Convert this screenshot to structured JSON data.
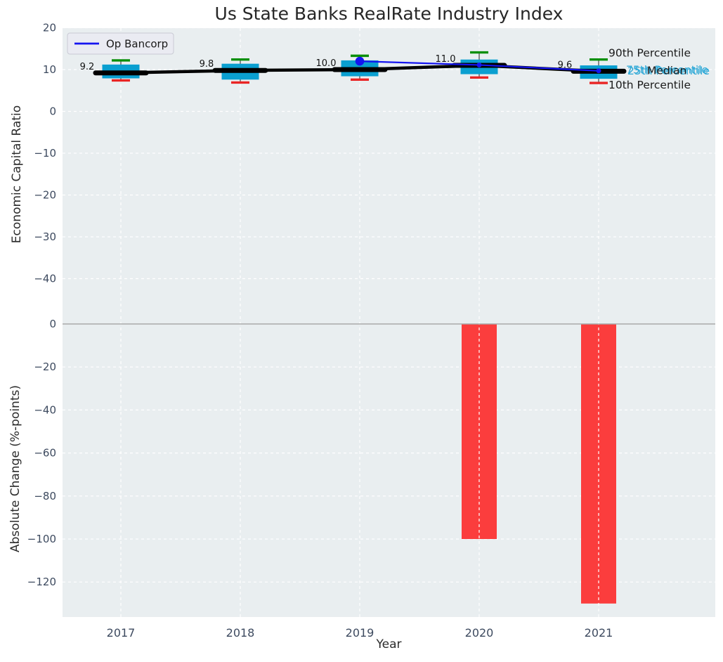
{
  "title": "Us State Banks RealRate Industry Index",
  "legend": {
    "label": "Op Bancorp"
  },
  "percentile_labels": {
    "p90": "90th Percentile",
    "p75": "75th Percentile",
    "median": "Median",
    "p25": "25th Percentile",
    "p10": "10th Percentile"
  },
  "colors": {
    "panel_bg": "#e9eef0",
    "grid": "#ffffff",
    "box_fill": "#0a9fd0",
    "cap_90": "#0a8f0a",
    "cap_10": "#e92424",
    "whisker": "#5b5b5b",
    "median_line": "#000000",
    "series_line": "#1515f0",
    "bar_color": "#fb3d3d",
    "zero_line": "#a9a9a9",
    "tick": "#3d4a5f",
    "text": "#1a1a1a",
    "cyan_label": "#2aa7d6",
    "legend_bg": "#eaebf2",
    "legend_border": "#c9cad4",
    "annotation": "#111111"
  },
  "chart_data": [
    {
      "type": "box",
      "title": "Us State Banks RealRate Industry Index",
      "ylabel": "Economic Capital Ratio",
      "categories": [
        "2017",
        "2018",
        "2019",
        "2020",
        "2021"
      ],
      "yticks": [
        "20",
        "10",
        "0",
        "−10",
        "−20",
        "−30",
        "−40"
      ],
      "ytick_values": [
        20,
        10,
        0,
        -10,
        -20,
        -30,
        -40
      ],
      "ylim": [
        -49,
        20
      ],
      "grid": true,
      "legend_position": "upper left",
      "boxes": [
        {
          "year": "2017",
          "p10": 7.4,
          "q1": 7.9,
          "median": 9.2,
          "q3": 11.2,
          "p90": 12.2
        },
        {
          "year": "2018",
          "p10": 6.9,
          "q1": 7.6,
          "median": 9.8,
          "q3": 11.4,
          "p90": 12.4
        },
        {
          "year": "2019",
          "p10": 7.6,
          "q1": 8.4,
          "median": 10.0,
          "q3": 12.2,
          "p90": 13.3
        },
        {
          "year": "2020",
          "p10": 8.1,
          "q1": 8.9,
          "median": 11.0,
          "q3": 12.4,
          "p90": 14.1
        },
        {
          "year": "2021",
          "p10": 6.8,
          "q1": 7.8,
          "median": 9.6,
          "q3": 11.0,
          "p90": 12.4
        }
      ],
      "median_labels": [
        "9.2",
        "9.8",
        "10.0",
        "11.0",
        "9.6"
      ],
      "series": [
        {
          "name": "Op Bancorp",
          "x": [
            "2019",
            "2020",
            "2021"
          ],
          "values": [
            12.0,
            11.1,
            9.7
          ]
        }
      ]
    },
    {
      "type": "bar",
      "ylabel": "Absolute Change (%-points)",
      "xlabel": "Year",
      "categories": [
        "2017",
        "2018",
        "2019",
        "2020",
        "2021"
      ],
      "values": [
        0,
        0,
        0,
        -100,
        -130
      ],
      "yticks": [
        "0",
        "−20",
        "−40",
        "−60",
        "−80",
        "−100",
        "−120"
      ],
      "ytick_values": [
        0,
        -20,
        -40,
        -60,
        -80,
        -100,
        -120
      ],
      "ylim": [
        -136,
        4
      ],
      "grid": true
    }
  ]
}
